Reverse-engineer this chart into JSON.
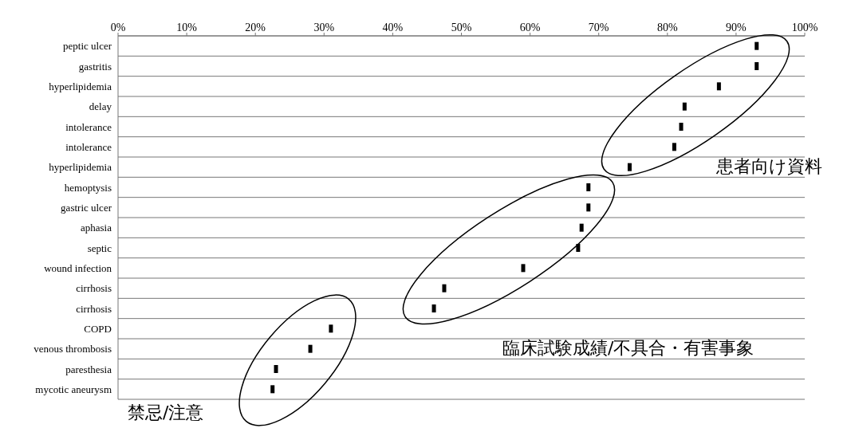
{
  "chart_data": {
    "type": "scatter",
    "categories": [
      "peptic ulcer",
      "gastritis",
      "hyperlipidemia",
      "delay",
      "intolerance",
      "intolerance",
      "hyperlipidemia",
      "hemoptysis",
      "gastric ulcer",
      "aphasia",
      "septic",
      "wound infection",
      "cirrhosis",
      "cirrhosis",
      "COPD",
      "venous thrombosis",
      "paresthesia",
      "mycotic aneurysm"
    ],
    "orientation": "horizontal",
    "series": [
      {
        "color": "#000000",
        "values": [
          93,
          93,
          87.5,
          82.5,
          82,
          81,
          74.5,
          68.5,
          68.5,
          67.5,
          67,
          59,
          47.5,
          46,
          31,
          28,
          23,
          22.5
        ]
      }
    ],
    "xlim": [
      0,
      100
    ],
    "xticks": [
      {
        "value": 0,
        "label": "0%"
      },
      {
        "value": 10,
        "label": "10%"
      },
      {
        "value": 20,
        "label": "20%"
      },
      {
        "value": 30,
        "label": "30%"
      },
      {
        "value": 40,
        "label": "40%"
      },
      {
        "value": 50,
        "label": "50%"
      },
      {
        "value": 60,
        "label": "60%"
      },
      {
        "value": 70,
        "label": "70%"
      },
      {
        "value": 80,
        "label": "80%"
      },
      {
        "value": 90,
        "label": "90%"
      },
      {
        "value": 100,
        "label": "100%"
      }
    ],
    "grid": "y",
    "marker": "square",
    "annotations": [
      "患者向け資料",
      "臨床試験成績/不具合・有害事象",
      "禁忌/注意"
    ]
  }
}
